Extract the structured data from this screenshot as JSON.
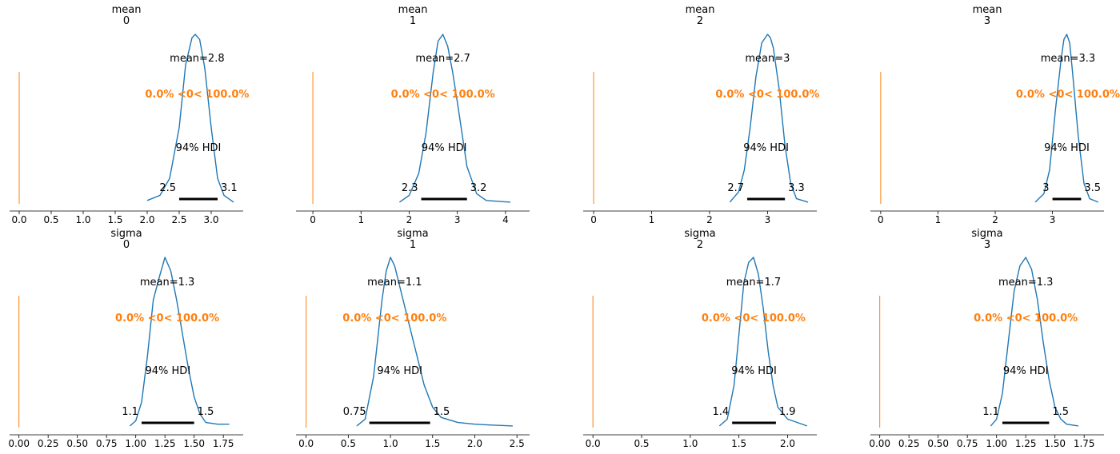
{
  "figure": {
    "background": "#ffffff",
    "kde_color": "#1f77b4",
    "ref_color": "#ff7f0e",
    "text_color": "#000000"
  },
  "chart_data": [
    {
      "type": "line",
      "title": "mean\n0",
      "xlim": [
        -0.15,
        3.5
      ],
      "xticks": [
        "0.0",
        "0.5",
        "1.0",
        "1.5",
        "2.0",
        "2.5",
        "3.0"
      ],
      "mean_label": "mean=2.8",
      "mean": 2.78,
      "ref_label": "0.0% <0< 100.0%",
      "ref_value": 0,
      "hdi_label": "94% HDI",
      "hdi": [
        2.5,
        3.1
      ],
      "hdi_low_label": "2.5",
      "hdi_high_label": "3.1",
      "kde": {
        "x": [
          2.0,
          2.2,
          2.35,
          2.5,
          2.6,
          2.7,
          2.75,
          2.82,
          2.9,
          3.0,
          3.1,
          3.2,
          3.35
        ],
        "y": [
          0.02,
          0.05,
          0.15,
          0.45,
          0.82,
          0.98,
          1.0,
          0.97,
          0.8,
          0.45,
          0.15,
          0.05,
          0.01
        ]
      }
    },
    {
      "type": "line",
      "title": "mean\n1",
      "xlim": [
        -0.35,
        4.5
      ],
      "xticks": [
        "0",
        "1",
        "2",
        "3",
        "4"
      ],
      "mean_label": "mean=2.7",
      "mean": 2.7,
      "ref_label": "0.0% <0< 100.0%",
      "ref_value": 0,
      "hdi_label": "94% HDI",
      "hdi": [
        2.25,
        3.2
      ],
      "hdi_low_label": "2.3",
      "hdi_high_label": "3.2",
      "kde": {
        "x": [
          1.8,
          2.0,
          2.2,
          2.35,
          2.5,
          2.6,
          2.7,
          2.8,
          2.9,
          3.0,
          3.2,
          3.4,
          3.6,
          4.1
        ],
        "y": [
          0.01,
          0.05,
          0.18,
          0.42,
          0.78,
          0.96,
          1.0,
          0.93,
          0.78,
          0.6,
          0.22,
          0.06,
          0.02,
          0.01
        ]
      }
    },
    {
      "type": "line",
      "title": "mean\n2",
      "xlim": [
        -0.18,
        3.85
      ],
      "xticks": [
        "0",
        "1",
        "2",
        "3"
      ],
      "mean_label": "mean=3",
      "mean": 3.0,
      "ref_label": "0.0% <0< 100.0%",
      "ref_value": 0,
      "hdi_label": "94% HDI",
      "hdi": [
        2.65,
        3.3
      ],
      "hdi_low_label": "2.7",
      "hdi_high_label": "3.3",
      "kde": {
        "x": [
          2.35,
          2.5,
          2.6,
          2.7,
          2.8,
          2.9,
          3.0,
          3.05,
          3.1,
          3.2,
          3.3,
          3.4,
          3.5,
          3.7
        ],
        "y": [
          0.01,
          0.07,
          0.2,
          0.45,
          0.75,
          0.95,
          1.0,
          0.98,
          0.92,
          0.68,
          0.35,
          0.12,
          0.03,
          0.01
        ]
      }
    },
    {
      "type": "line",
      "title": "mean\n3",
      "xlim": [
        -0.18,
        3.9
      ],
      "xticks": [
        "0",
        "1",
        "2",
        "3"
      ],
      "mean_label": "mean=3.3",
      "mean": 3.27,
      "ref_label": "0.0% <0< 100.0%",
      "ref_value": 0,
      "hdi_label": "94% HDI",
      "hdi": [
        3.0,
        3.5
      ],
      "hdi_low_label": "3",
      "hdi_high_label": "3.5",
      "kde": {
        "x": [
          2.7,
          2.85,
          2.95,
          3.05,
          3.15,
          3.2,
          3.25,
          3.3,
          3.35,
          3.45,
          3.55,
          3.65,
          3.8
        ],
        "y": [
          0.01,
          0.06,
          0.2,
          0.55,
          0.85,
          0.97,
          1.0,
          0.95,
          0.78,
          0.4,
          0.12,
          0.03,
          0.01
        ]
      }
    },
    {
      "type": "line",
      "title": "sigma\n0",
      "xlim": [
        -0.08,
        1.92
      ],
      "xticks": [
        "0.00",
        "0.25",
        "0.50",
        "0.75",
        "1.00",
        "1.25",
        "1.50",
        "1.75"
      ],
      "mean_label": "mean=1.3",
      "mean": 1.27,
      "ref_label": "0.0% <0< 100.0%",
      "ref_value": 0,
      "hdi_label": "94% HDI",
      "hdi": [
        1.05,
        1.5
      ],
      "hdi_low_label": "1.1",
      "hdi_high_label": "1.5",
      "kde": {
        "x": [
          0.95,
          1.0,
          1.05,
          1.1,
          1.15,
          1.2,
          1.25,
          1.3,
          1.35,
          1.4,
          1.45,
          1.5,
          1.55,
          1.6,
          1.7,
          1.8
        ],
        "y": [
          0.01,
          0.04,
          0.15,
          0.42,
          0.75,
          0.88,
          1.0,
          0.92,
          0.75,
          0.55,
          0.35,
          0.18,
          0.08,
          0.03,
          0.02,
          0.02
        ]
      }
    },
    {
      "type": "line",
      "title": "sigma\n1",
      "xlim": [
        -0.12,
        2.65
      ],
      "xticks": [
        "0.0",
        "0.5",
        "1.0",
        "1.5",
        "2.0",
        "2.5"
      ],
      "mean_label": "mean=1.1",
      "mean": 1.05,
      "ref_label": "0.0% <0< 100.0%",
      "ref_value": 0,
      "hdi_label": "94% HDI",
      "hdi": [
        0.75,
        1.47
      ],
      "hdi_low_label": "0.75",
      "hdi_high_label": "1.5",
      "kde": {
        "x": [
          0.6,
          0.7,
          0.8,
          0.9,
          0.95,
          1.0,
          1.05,
          1.1,
          1.2,
          1.3,
          1.4,
          1.5,
          1.6,
          1.8,
          2.0,
          2.2,
          2.45
        ],
        "y": [
          0.01,
          0.05,
          0.3,
          0.75,
          0.92,
          1.0,
          0.95,
          0.85,
          0.65,
          0.45,
          0.25,
          0.12,
          0.06,
          0.03,
          0.02,
          0.015,
          0.01
        ]
      }
    },
    {
      "type": "line",
      "title": "sigma\n2",
      "xlim": [
        -0.1,
        2.3
      ],
      "xticks": [
        "0.0",
        "0.5",
        "1.0",
        "1.5",
        "2.0"
      ],
      "mean_label": "mean=1.7",
      "mean": 1.65,
      "ref_label": "0.0% <0< 100.0%",
      "ref_value": 0,
      "hdi_label": "94% HDI",
      "hdi": [
        1.43,
        1.88
      ],
      "hdi_low_label": "1.4",
      "hdi_high_label": "1.9",
      "kde": {
        "x": [
          1.3,
          1.38,
          1.45,
          1.5,
          1.55,
          1.6,
          1.65,
          1.7,
          1.75,
          1.8,
          1.85,
          1.9,
          2.0,
          2.1,
          2.2
        ],
        "y": [
          0.01,
          0.05,
          0.25,
          0.55,
          0.85,
          0.97,
          1.0,
          0.9,
          0.7,
          0.45,
          0.25,
          0.12,
          0.05,
          0.03,
          0.01
        ]
      }
    },
    {
      "type": "line",
      "title": "sigma\n3",
      "xlim": [
        -0.08,
        1.92
      ],
      "xticks": [
        "0.00",
        "0.25",
        "0.50",
        "0.75",
        "1.00",
        "1.25",
        "1.50",
        "1.75"
      ],
      "mean_label": "mean=1.3",
      "mean": 1.25,
      "ref_label": "0.0% <0< 100.0%",
      "ref_value": 0,
      "hdi_label": "94% HDI",
      "hdi": [
        1.05,
        1.45
      ],
      "hdi_low_label": "1.1",
      "hdi_high_label": "1.5",
      "kde": {
        "x": [
          0.95,
          1.0,
          1.05,
          1.1,
          1.15,
          1.2,
          1.25,
          1.3,
          1.35,
          1.4,
          1.45,
          1.5,
          1.55,
          1.6,
          1.7
        ],
        "y": [
          0.01,
          0.05,
          0.2,
          0.5,
          0.8,
          0.95,
          1.0,
          0.93,
          0.75,
          0.5,
          0.28,
          0.12,
          0.05,
          0.02,
          0.01
        ]
      }
    }
  ]
}
